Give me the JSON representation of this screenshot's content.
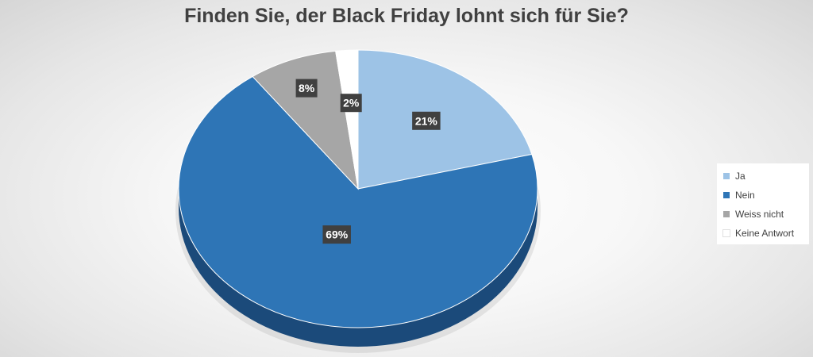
{
  "chart_data": {
    "type": "pie",
    "title": "Finden Sie, der Black Friday lohnt sich für Sie?",
    "categories": [
      "Ja",
      "Nein",
      "Weiss nicht",
      "Keine Antwort"
    ],
    "values": [
      21,
      69,
      8,
      2
    ],
    "value_labels": [
      "21%",
      "69%",
      "8%",
      "2%"
    ],
    "colors": [
      "#9dc3e6",
      "#2e75b6",
      "#a6a6a6",
      "#ffffff"
    ],
    "side_colors": [
      "#6f93b8",
      "#1b4a7a",
      "#6e6e6e",
      "#cfcfcf"
    ],
    "label_box_color": "#404040",
    "legend_position": "right",
    "style": "3d-pie"
  }
}
